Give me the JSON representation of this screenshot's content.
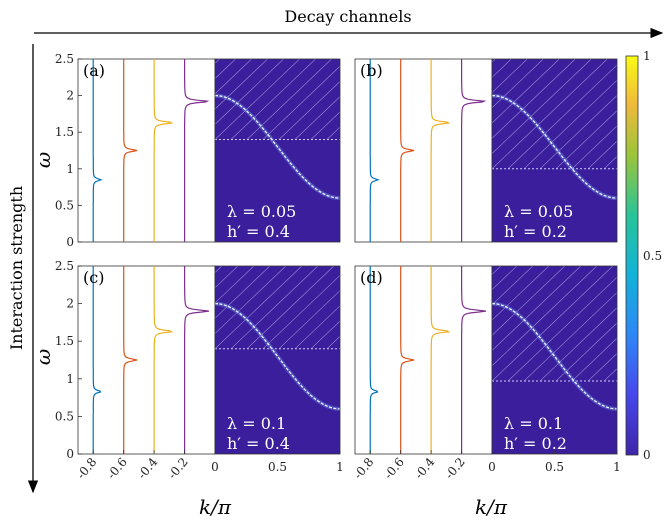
{
  "figure": {
    "top_label": "Decay channels",
    "side_label": "Interaction strength",
    "y_axis_label": "ω",
    "x_axis_label": "k/π"
  },
  "colorbar": {
    "ticks": [
      "1",
      "0.5",
      "0"
    ],
    "tick_values": [
      1,
      0.5,
      0
    ]
  },
  "colors": {
    "heatmap_background": "#3a1e9c",
    "band_color": "#e8f4ff",
    "spectral_lines": [
      "#0072bd",
      "#d95319",
      "#edb120",
      "#7e2f8e"
    ]
  },
  "chart_data": [
    {
      "panel": "(a)",
      "type": "heatmap",
      "lambda_label": "λ = 0.05",
      "h_label": "h′ = 0.4",
      "threshold": 1.4,
      "spectral_peaks": [
        0.85,
        1.25,
        1.63,
        1.92
      ],
      "xlim": [
        -0.9,
        1
      ],
      "ylim": [
        0,
        2.5
      ],
      "y_ticks": [
        "0",
        "0.5",
        "1",
        "1.5",
        "2",
        "2.5"
      ],
      "x_ticks_left": [
        "-0.8",
        "-0.6",
        "-0.4",
        "-0.2"
      ],
      "x_ticks_right": [
        "0",
        "0.5",
        "1"
      ]
    },
    {
      "panel": "(b)",
      "type": "heatmap",
      "lambda_label": "λ = 0.05",
      "h_label": "h′ = 0.2",
      "threshold": 1.0,
      "spectral_peaks": [
        0.85,
        1.25,
        1.63,
        1.92
      ],
      "xlim": [
        -0.9,
        1
      ],
      "ylim": [
        0,
        2.5
      ],
      "x_ticks_left": [
        "-0.8",
        "-0.6",
        "-0.4",
        "-0.2"
      ],
      "x_ticks_right": [
        "0",
        "0.5",
        "1"
      ]
    },
    {
      "panel": "(c)",
      "type": "heatmap",
      "lambda_label": "λ = 0.1",
      "h_label": "h′ = 0.4",
      "threshold": 1.4,
      "spectral_peaks": [
        0.83,
        1.25,
        1.63,
        1.9
      ],
      "xlim": [
        -0.9,
        1
      ],
      "ylim": [
        0,
        2.5
      ],
      "y_ticks": [
        "0",
        "0.5",
        "1",
        "1.5",
        "2",
        "2.5"
      ],
      "x_ticks_left": [
        "-0.8",
        "-0.6",
        "-0.4",
        "-0.2"
      ],
      "x_ticks_right": [
        "0",
        "0.5",
        "1"
      ]
    },
    {
      "panel": "(d)",
      "type": "heatmap",
      "lambda_label": "λ = 0.1",
      "h_label": "h′ = 0.2",
      "threshold": 0.97,
      "spectral_peaks": [
        0.83,
        1.25,
        1.63,
        1.9
      ],
      "xlim": [
        -0.9,
        1
      ],
      "ylim": [
        0,
        2.5
      ],
      "x_ticks_left": [
        "-0.8",
        "-0.6",
        "-0.4",
        "-0.2"
      ],
      "x_ticks_right": [
        "0",
        "0.5",
        "1"
      ]
    }
  ]
}
